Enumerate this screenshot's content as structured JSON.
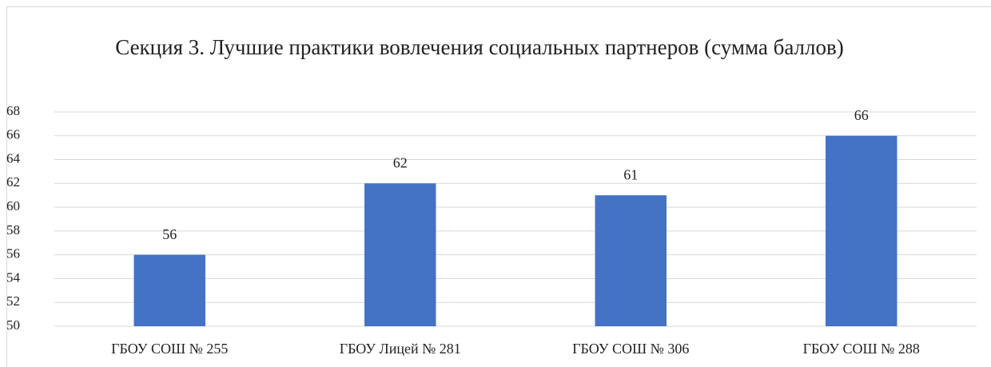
{
  "chart_data": {
    "type": "bar",
    "title": "Секция 3. Лучшие практики вовлечения социальных партнеров (сумма баллов)",
    "categories": [
      "ГБОУ СОШ № 255",
      "ГБОУ Лицей № 281",
      "ГБОУ СОШ № 306",
      "ГБОУ СОШ № 288"
    ],
    "values": [
      56,
      62,
      61,
      66
    ],
    "color": "#4472c4",
    "ylim": [
      50,
      68
    ],
    "yticks": [
      50,
      52,
      54,
      56,
      58,
      60,
      62,
      64,
      66,
      68
    ],
    "grid": true
  }
}
